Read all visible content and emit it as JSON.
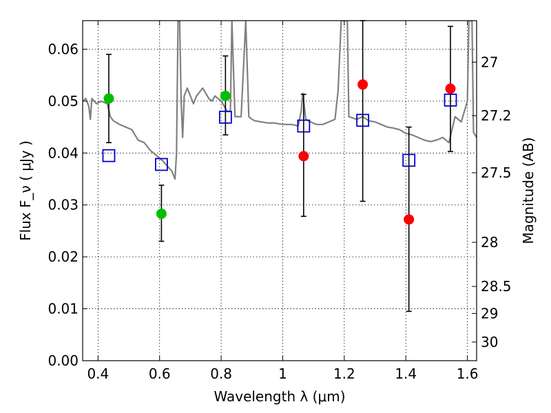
{
  "chart_data": {
    "type": "scatter",
    "xlabel": "Wavelength  λ (μm)",
    "ylabel": "Flux  F_ν  ( μJy )",
    "y2label": "Magnitude (AB)",
    "xlim": [
      0.35,
      1.63
    ],
    "ylim": [
      0.0,
      0.0655
    ],
    "x_ticks": [
      0.4,
      0.6,
      0.8,
      1.0,
      1.2,
      1.4,
      1.6
    ],
    "x_tick_labels": [
      "0.4",
      "0.6",
      "0.8",
      "1",
      "1.2",
      "1.4",
      "1.6"
    ],
    "y_ticks": [
      0.0,
      0.01,
      0.02,
      0.03,
      0.04,
      0.05,
      0.06
    ],
    "y_tick_labels": [
      "0.00",
      "0.01",
      "0.02",
      "0.03",
      "0.04",
      "0.05",
      "0.06"
    ],
    "y2_ticks": [
      {
        "flux": 0.0575,
        "label": "27"
      },
      {
        "flux": 0.0472,
        "label": "27.2"
      },
      {
        "flux": 0.0362,
        "label": "27.5"
      },
      {
        "flux": 0.0228,
        "label": "28"
      },
      {
        "flux": 0.0143,
        "label": "28.5"
      },
      {
        "flux": 0.0091,
        "label": "29"
      },
      {
        "flux": 0.0036,
        "label": "30"
      }
    ],
    "grid": true,
    "series": [
      {
        "marker": "circle",
        "color": "#00bf00",
        "points": [
          {
            "x": 0.435,
            "y": 0.0505,
            "yerr_low": 0.042,
            "yerr_high": 0.059
          },
          {
            "x": 0.606,
            "y": 0.0283,
            "yerr_low": 0.023,
            "yerr_high": 0.0338
          },
          {
            "x": 0.814,
            "y": 0.051,
            "yerr_low": 0.0435,
            "yerr_high": 0.0587
          }
        ]
      },
      {
        "marker": "circle",
        "color": "#ff0000",
        "points": [
          {
            "x": 1.068,
            "y": 0.0394,
            "yerr_low": 0.0278,
            "yerr_high": 0.0513
          },
          {
            "x": 1.26,
            "y": 0.0532,
            "yerr_low": 0.0307,
            "yerr_high": 0.0655
          },
          {
            "x": 1.41,
            "y": 0.0272,
            "yerr_low": 0.0095,
            "yerr_high": 0.045
          },
          {
            "x": 1.545,
            "y": 0.0524,
            "yerr_low": 0.0403,
            "yerr_high": 0.0644
          }
        ]
      },
      {
        "marker": "square-open",
        "color": "#0000cc",
        "points": [
          {
            "x": 0.435,
            "y": 0.0395
          },
          {
            "x": 0.606,
            "y": 0.0378
          },
          {
            "x": 0.814,
            "y": 0.0469
          },
          {
            "x": 1.068,
            "y": 0.0452
          },
          {
            "x": 1.26,
            "y": 0.0463
          },
          {
            "x": 1.41,
            "y": 0.0386
          },
          {
            "x": 1.545,
            "y": 0.0502
          }
        ]
      }
    ],
    "spectrum": {
      "color": "#808080",
      "points": [
        [
          0.35,
          0.05
        ],
        [
          0.36,
          0.0505
        ],
        [
          0.37,
          0.049
        ],
        [
          0.375,
          0.0465
        ],
        [
          0.38,
          0.0505
        ],
        [
          0.395,
          0.0495
        ],
        [
          0.41,
          0.05
        ],
        [
          0.43,
          0.0495
        ],
        [
          0.44,
          0.047
        ],
        [
          0.45,
          0.0462
        ],
        [
          0.47,
          0.0455
        ],
        [
          0.49,
          0.045
        ],
        [
          0.51,
          0.0445
        ],
        [
          0.53,
          0.0425
        ],
        [
          0.55,
          0.042
        ],
        [
          0.57,
          0.0405
        ],
        [
          0.59,
          0.0395
        ],
        [
          0.61,
          0.0385
        ],
        [
          0.625,
          0.0375
        ],
        [
          0.64,
          0.0365
        ],
        [
          0.65,
          0.035
        ],
        [
          0.655,
          0.04
        ],
        [
          0.66,
          0.0655
        ],
        [
          0.665,
          0.0655
        ],
        [
          0.67,
          0.05
        ],
        [
          0.675,
          0.043
        ],
        [
          0.68,
          0.051
        ],
        [
          0.69,
          0.0525
        ],
        [
          0.7,
          0.051
        ],
        [
          0.71,
          0.0495
        ],
        [
          0.72,
          0.051
        ],
        [
          0.74,
          0.0525
        ],
        [
          0.76,
          0.0505
        ],
        [
          0.77,
          0.05
        ],
        [
          0.78,
          0.051
        ],
        [
          0.8,
          0.05
        ],
        [
          0.81,
          0.049
        ],
        [
          0.82,
          0.048
        ],
        [
          0.83,
          0.048
        ],
        [
          0.835,
          0.0655
        ],
        [
          0.845,
          0.047
        ],
        [
          0.855,
          0.047
        ],
        [
          0.865,
          0.047
        ],
        [
          0.88,
          0.0655
        ],
        [
          0.89,
          0.047
        ],
        [
          0.9,
          0.0465
        ],
        [
          0.91,
          0.0462
        ],
        [
          0.93,
          0.046
        ],
        [
          0.95,
          0.0458
        ],
        [
          0.97,
          0.0458
        ],
        [
          0.99,
          0.0456
        ],
        [
          1.01,
          0.0455
        ],
        [
          1.03,
          0.0455
        ],
        [
          1.05,
          0.0452
        ],
        [
          1.06,
          0.048
        ],
        [
          1.065,
          0.0515
        ],
        [
          1.075,
          0.0465
        ],
        [
          1.09,
          0.046
        ],
        [
          1.11,
          0.0455
        ],
        [
          1.13,
          0.0455
        ],
        [
          1.15,
          0.046
        ],
        [
          1.17,
          0.0465
        ],
        [
          1.18,
          0.052
        ],
        [
          1.19,
          0.0655
        ],
        [
          1.21,
          0.0655
        ],
        [
          1.215,
          0.047
        ],
        [
          1.24,
          0.0465
        ],
        [
          1.26,
          0.047
        ],
        [
          1.28,
          0.0462
        ],
        [
          1.3,
          0.046
        ],
        [
          1.32,
          0.0455
        ],
        [
          1.34,
          0.045
        ],
        [
          1.36,
          0.0448
        ],
        [
          1.38,
          0.0445
        ],
        [
          1.4,
          0.0438
        ],
        [
          1.42,
          0.0435
        ],
        [
          1.44,
          0.043
        ],
        [
          1.46,
          0.0425
        ],
        [
          1.48,
          0.0422
        ],
        [
          1.5,
          0.0425
        ],
        [
          1.52,
          0.043
        ],
        [
          1.54,
          0.042
        ],
        [
          1.56,
          0.047
        ],
        [
          1.58,
          0.046
        ],
        [
          1.6,
          0.05
        ],
        [
          1.605,
          0.0655
        ],
        [
          1.615,
          0.0655
        ],
        [
          1.62,
          0.044
        ],
        [
          1.63,
          0.043
        ]
      ]
    }
  }
}
